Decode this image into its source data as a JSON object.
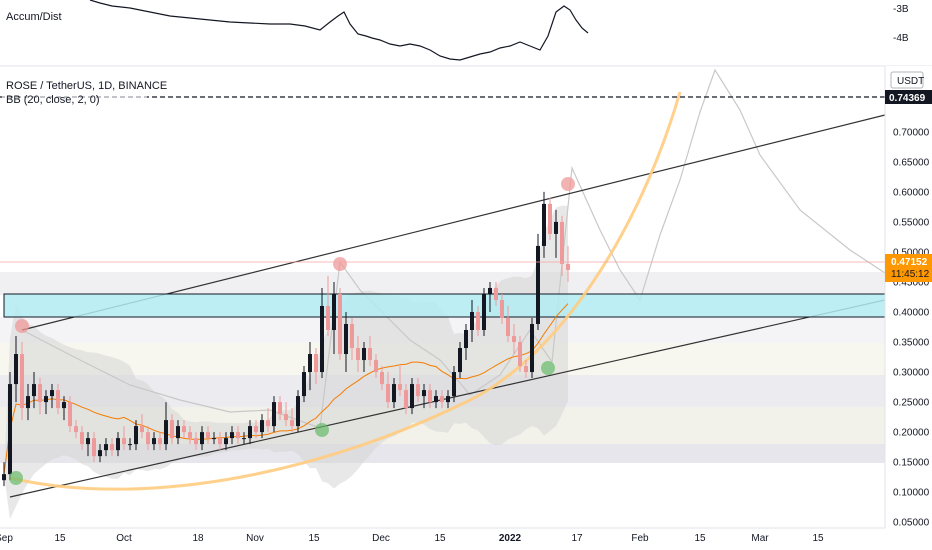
{
  "indicator_pane": {
    "title": "Accum/Dist",
    "y_labels": [
      "-3B",
      "-4B"
    ]
  },
  "main_legend": {
    "symbol_line": "ROSE / TetherUS, 1D, BINANCE",
    "bb_line": "BB (20, close, 2, 0)"
  },
  "price_axis": {
    "currency": "USDT"
  },
  "price_tags": {
    "dashed_level": "0.74369",
    "last_price": "0.47152",
    "countdown": "11:45:12"
  },
  "colors": {
    "up_candle": "#131722",
    "down_candle": "#ef9a9a",
    "bb_basis": "#f57c00",
    "bb_band_fill": "#d8d8d8",
    "parabola": "#ffcc80",
    "channel": "#333333",
    "zone_fill": "#b2ebf2",
    "last_price_tag": "#ff9800",
    "dashed_tag": "#131722"
  },
  "chart_data": {
    "type": "candlestick",
    "title": "ROSE / TetherUS, 1D, BINANCE",
    "ylabel": "USDT",
    "ylim": [
      0.04,
      0.78
    ],
    "y_ticks": [
      "0.70000",
      "0.65000",
      "0.60000",
      "0.55000",
      "0.50000",
      "0.45000",
      "0.40000",
      "0.35000",
      "0.30000",
      "0.25000",
      "0.20000",
      "0.15000",
      "0.10000",
      "0.05000"
    ],
    "x_ticks": [
      "Sep",
      "15",
      "Oct",
      "18",
      "Nov",
      "15",
      "Dec",
      "15",
      "2022",
      "17",
      "Feb",
      "15",
      "Mar",
      "15"
    ],
    "grid": false,
    "candles": [
      [
        0.12,
        0.15,
        0.11,
        0.13
      ],
      [
        0.13,
        0.3,
        0.12,
        0.28
      ],
      [
        0.28,
        0.36,
        0.25,
        0.33
      ],
      [
        0.33,
        0.35,
        0.22,
        0.24
      ],
      [
        0.24,
        0.28,
        0.22,
        0.26
      ],
      [
        0.26,
        0.3,
        0.24,
        0.28
      ],
      [
        0.28,
        0.29,
        0.23,
        0.25
      ],
      [
        0.25,
        0.27,
        0.23,
        0.26
      ],
      [
        0.26,
        0.28,
        0.24,
        0.27
      ],
      [
        0.27,
        0.28,
        0.23,
        0.24
      ],
      [
        0.24,
        0.26,
        0.22,
        0.25
      ],
      [
        0.25,
        0.26,
        0.2,
        0.21
      ],
      [
        0.21,
        0.22,
        0.19,
        0.2
      ],
      [
        0.2,
        0.21,
        0.17,
        0.18
      ],
      [
        0.18,
        0.2,
        0.16,
        0.19
      ],
      [
        0.19,
        0.2,
        0.15,
        0.16
      ],
      [
        0.16,
        0.18,
        0.15,
        0.17
      ],
      [
        0.17,
        0.19,
        0.16,
        0.18
      ],
      [
        0.18,
        0.19,
        0.16,
        0.17
      ],
      [
        0.17,
        0.2,
        0.16,
        0.19
      ],
      [
        0.19,
        0.21,
        0.17,
        0.18
      ],
      [
        0.18,
        0.19,
        0.17,
        0.18
      ],
      [
        0.18,
        0.22,
        0.17,
        0.21
      ],
      [
        0.21,
        0.23,
        0.19,
        0.2
      ],
      [
        0.2,
        0.21,
        0.17,
        0.18
      ],
      [
        0.18,
        0.2,
        0.17,
        0.19
      ],
      [
        0.19,
        0.2,
        0.17,
        0.18
      ],
      [
        0.18,
        0.25,
        0.17,
        0.22
      ],
      [
        0.22,
        0.23,
        0.18,
        0.19
      ],
      [
        0.19,
        0.22,
        0.18,
        0.21
      ],
      [
        0.21,
        0.22,
        0.19,
        0.2
      ],
      [
        0.2,
        0.21,
        0.18,
        0.19
      ],
      [
        0.19,
        0.2,
        0.17,
        0.18
      ],
      [
        0.18,
        0.21,
        0.17,
        0.2
      ],
      [
        0.2,
        0.21,
        0.18,
        0.19
      ],
      [
        0.19,
        0.2,
        0.18,
        0.19
      ],
      [
        0.19,
        0.2,
        0.17,
        0.18
      ],
      [
        0.18,
        0.2,
        0.17,
        0.19
      ],
      [
        0.19,
        0.21,
        0.18,
        0.2
      ],
      [
        0.2,
        0.21,
        0.18,
        0.19
      ],
      [
        0.19,
        0.2,
        0.18,
        0.19
      ],
      [
        0.19,
        0.22,
        0.18,
        0.21
      ],
      [
        0.21,
        0.22,
        0.19,
        0.2
      ],
      [
        0.2,
        0.23,
        0.19,
        0.22
      ],
      [
        0.22,
        0.24,
        0.2,
        0.21
      ],
      [
        0.21,
        0.26,
        0.2,
        0.25
      ],
      [
        0.25,
        0.26,
        0.22,
        0.23
      ],
      [
        0.23,
        0.25,
        0.21,
        0.22
      ],
      [
        0.22,
        0.24,
        0.2,
        0.21
      ],
      [
        0.21,
        0.27,
        0.2,
        0.26
      ],
      [
        0.26,
        0.31,
        0.25,
        0.3
      ],
      [
        0.3,
        0.35,
        0.27,
        0.33
      ],
      [
        0.33,
        0.34,
        0.28,
        0.3
      ],
      [
        0.3,
        0.44,
        0.29,
        0.41
      ],
      [
        0.41,
        0.46,
        0.36,
        0.37
      ],
      [
        0.37,
        0.45,
        0.33,
        0.43
      ],
      [
        0.43,
        0.44,
        0.32,
        0.33
      ],
      [
        0.33,
        0.4,
        0.3,
        0.38
      ],
      [
        0.38,
        0.39,
        0.32,
        0.34
      ],
      [
        0.34,
        0.36,
        0.3,
        0.32
      ],
      [
        0.32,
        0.35,
        0.3,
        0.34
      ],
      [
        0.34,
        0.36,
        0.31,
        0.32
      ],
      [
        0.32,
        0.33,
        0.29,
        0.3
      ],
      [
        0.3,
        0.31,
        0.27,
        0.28
      ],
      [
        0.28,
        0.3,
        0.24,
        0.25
      ],
      [
        0.25,
        0.29,
        0.24,
        0.28
      ],
      [
        0.28,
        0.31,
        0.26,
        0.27
      ],
      [
        0.27,
        0.28,
        0.23,
        0.24
      ],
      [
        0.24,
        0.29,
        0.23,
        0.28
      ],
      [
        0.28,
        0.29,
        0.25,
        0.26
      ],
      [
        0.26,
        0.28,
        0.24,
        0.27
      ],
      [
        0.27,
        0.28,
        0.24,
        0.25
      ],
      [
        0.25,
        0.27,
        0.24,
        0.26
      ],
      [
        0.26,
        0.27,
        0.24,
        0.25
      ],
      [
        0.25,
        0.27,
        0.24,
        0.26
      ],
      [
        0.26,
        0.31,
        0.25,
        0.3
      ],
      [
        0.3,
        0.35,
        0.29,
        0.34
      ],
      [
        0.34,
        0.38,
        0.32,
        0.37
      ],
      [
        0.37,
        0.42,
        0.35,
        0.4
      ],
      [
        0.4,
        0.41,
        0.36,
        0.37
      ],
      [
        0.37,
        0.44,
        0.36,
        0.43
      ],
      [
        0.43,
        0.45,
        0.4,
        0.44
      ],
      [
        0.44,
        0.45,
        0.41,
        0.42
      ],
      [
        0.42,
        0.43,
        0.38,
        0.39
      ],
      [
        0.39,
        0.41,
        0.35,
        0.36
      ],
      [
        0.36,
        0.38,
        0.33,
        0.35
      ],
      [
        0.35,
        0.36,
        0.3,
        0.31
      ],
      [
        0.31,
        0.32,
        0.29,
        0.3
      ],
      [
        0.3,
        0.39,
        0.29,
        0.38
      ],
      [
        0.38,
        0.53,
        0.37,
        0.51
      ],
      [
        0.51,
        0.6,
        0.49,
        0.58
      ],
      [
        0.58,
        0.59,
        0.52,
        0.53
      ],
      [
        0.53,
        0.57,
        0.49,
        0.55
      ],
      [
        0.55,
        0.56,
        0.46,
        0.48
      ],
      [
        0.48,
        0.51,
        0.45,
        0.47
      ]
    ]
  }
}
